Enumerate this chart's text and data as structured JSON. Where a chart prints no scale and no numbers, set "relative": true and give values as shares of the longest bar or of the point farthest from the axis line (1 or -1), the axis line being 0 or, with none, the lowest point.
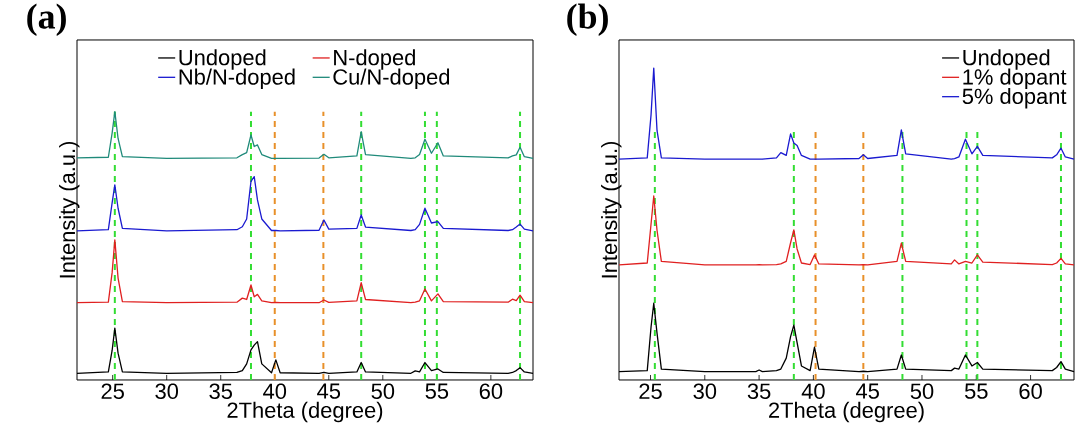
{
  "chart_data": [
    {
      "type": "line",
      "annotations": [
        "(a)"
      ],
      "xlabel": "2Theta (degree)",
      "ylabel": "Intensity (a.u.)",
      "relative": true,
      "xlim": [
        21.7,
        63.9
      ],
      "xticks": [
        25,
        30,
        35,
        40,
        45,
        50,
        55,
        60
      ],
      "legend": "top",
      "x": [
        21.7,
        24.6,
        24.95,
        25.2,
        25.5,
        25.9,
        30,
        36.5,
        37.0,
        37.4,
        37.8,
        38.1,
        38.4,
        38.8,
        39.7,
        40.1,
        40.5,
        44.1,
        44.55,
        45.0,
        47.6,
        48.0,
        48.4,
        52.6,
        53.0,
        53.4,
        53.9,
        54.5,
        55.1,
        55.6,
        61.6,
        62.0,
        62.35,
        62.7,
        63.1,
        63.9
      ],
      "series": [
        {
          "name": "Undoped",
          "color": "#000000",
          "values": [
            0.025,
            0.03,
            0.11,
            0.193,
            0.1,
            0.03,
            0.025,
            0.028,
            0.035,
            0.06,
            0.112,
            0.13,
            0.143,
            0.06,
            0.027,
            0.075,
            0.027,
            0.025,
            0.028,
            0.025,
            0.03,
            0.065,
            0.03,
            0.025,
            0.034,
            0.03,
            0.065,
            0.035,
            0.041,
            0.028,
            0.025,
            0.028,
            0.035,
            0.046,
            0.03,
            0.025
          ]
        },
        {
          "name": "N-doped",
          "color": "#e02020",
          "values": [
            0.288,
            0.29,
            0.4,
            0.522,
            0.38,
            0.292,
            0.288,
            0.29,
            0.305,
            0.3,
            0.354,
            0.31,
            0.319,
            0.295,
            0.288,
            0.289,
            0.288,
            0.288,
            0.298,
            0.289,
            0.295,
            0.363,
            0.3,
            0.288,
            0.29,
            0.295,
            0.339,
            0.295,
            0.321,
            0.292,
            0.29,
            0.301,
            0.296,
            0.316,
            0.292,
            0.288
          ]
        },
        {
          "name": "Nb/N-doped",
          "color": "#1a1ad0",
          "values": [
            0.556,
            0.56,
            0.66,
            0.727,
            0.64,
            0.565,
            0.556,
            0.56,
            0.571,
            0.6,
            0.74,
            0.758,
            0.671,
            0.6,
            0.557,
            0.557,
            0.556,
            0.558,
            0.596,
            0.562,
            0.565,
            0.615,
            0.57,
            0.557,
            0.56,
            0.58,
            0.64,
            0.585,
            0.59,
            0.565,
            0.557,
            0.56,
            0.57,
            0.581,
            0.562,
            0.556
          ]
        },
        {
          "name": "Cu/N-doped",
          "color": "#1f8a7a",
          "values": [
            0.828,
            0.83,
            0.92,
            1.0,
            0.9,
            0.832,
            0.826,
            0.828,
            0.84,
            0.847,
            0.913,
            0.87,
            0.876,
            0.84,
            0.826,
            0.826,
            0.826,
            0.827,
            0.841,
            0.828,
            0.835,
            0.925,
            0.84,
            0.826,
            0.828,
            0.84,
            0.897,
            0.845,
            0.884,
            0.835,
            0.828,
            0.835,
            0.839,
            0.867,
            0.832,
            0.826
          ]
        }
      ],
      "ref_lines": [
        {
          "axis": "x",
          "value": 25.2,
          "color": "#33dd33",
          "line_style": "dashed"
        },
        {
          "axis": "x",
          "value": 37.8,
          "color": "#33dd33",
          "line_style": "dashed"
        },
        {
          "axis": "x",
          "value": 40.0,
          "color": "#e8902a",
          "line_style": "dashed"
        },
        {
          "axis": "x",
          "value": 44.5,
          "color": "#e8902a",
          "line_style": "dashed"
        },
        {
          "axis": "x",
          "value": 48.0,
          "color": "#33dd33",
          "line_style": "dashed"
        },
        {
          "axis": "x",
          "value": 53.9,
          "color": "#33dd33",
          "line_style": "dashed"
        },
        {
          "axis": "x",
          "value": 55.0,
          "color": "#33dd33",
          "line_style": "dashed"
        },
        {
          "axis": "x",
          "value": 62.7,
          "color": "#33dd33",
          "line_style": "dashed"
        }
      ]
    },
    {
      "type": "line",
      "annotations": [
        "(b)"
      ],
      "xlabel": "2Theta (degree)",
      "ylabel": "Intensity (a.u.)",
      "relative": true,
      "xlim": [
        22.1,
        64.0
      ],
      "xticks": [
        25,
        30,
        35,
        40,
        45,
        50,
        55,
        60
      ],
      "legend": "top right",
      "x": [
        22.1,
        24.7,
        25.05,
        25.3,
        25.6,
        26.0,
        30,
        34.7,
        35.0,
        35.3,
        36.6,
        37.0,
        37.5,
        37.9,
        38.2,
        38.5,
        38.9,
        39.7,
        40.1,
        40.5,
        44.2,
        44.6,
        45.0,
        47.7,
        48.1,
        48.5,
        52.7,
        53.0,
        53.4,
        54.0,
        54.6,
        55.1,
        55.6,
        62.0,
        62.4,
        62.8,
        63.2,
        64.0
      ],
      "series": [
        {
          "name": "Undoped",
          "color": "#000000",
          "values": [
            0.027,
            0.03,
            0.17,
            0.246,
            0.15,
            0.035,
            0.027,
            0.027,
            0.032,
            0.027,
            0.03,
            0.035,
            0.07,
            0.139,
            0.176,
            0.12,
            0.045,
            0.03,
            0.105,
            0.035,
            0.027,
            0.028,
            0.027,
            0.035,
            0.08,
            0.035,
            0.03,
            0.038,
            0.035,
            0.08,
            0.045,
            0.056,
            0.035,
            0.03,
            0.04,
            0.059,
            0.035,
            0.027
          ]
        },
        {
          "name": "1% dopant",
          "color": "#e02020",
          "values": [
            0.369,
            0.375,
            0.5,
            0.59,
            0.48,
            0.38,
            0.369,
            0.369,
            0.37,
            0.369,
            0.37,
            0.372,
            0.38,
            0.44,
            0.481,
            0.42,
            0.375,
            0.37,
            0.401,
            0.372,
            0.369,
            0.37,
            0.369,
            0.38,
            0.439,
            0.38,
            0.372,
            0.385,
            0.372,
            0.38,
            0.375,
            0.401,
            0.378,
            0.37,
            0.375,
            0.39,
            0.372,
            0.369
          ]
        },
        {
          "name": "5% dopant",
          "color": "#1a1ad0",
          "values": [
            0.708,
            0.712,
            0.85,
            1.0,
            0.8,
            0.712,
            0.708,
            0.708,
            0.708,
            0.708,
            0.712,
            0.729,
            0.72,
            0.789,
            0.76,
            0.752,
            0.72,
            0.708,
            0.708,
            0.708,
            0.71,
            0.722,
            0.71,
            0.72,
            0.802,
            0.725,
            0.708,
            0.71,
            0.715,
            0.772,
            0.725,
            0.749,
            0.72,
            0.712,
            0.722,
            0.743,
            0.715,
            0.708
          ]
        }
      ],
      "ref_lines": [
        {
          "axis": "x",
          "value": 25.4,
          "color": "#33dd33",
          "line_style": "dashed"
        },
        {
          "axis": "x",
          "value": 38.2,
          "color": "#33dd33",
          "line_style": "dashed"
        },
        {
          "axis": "x",
          "value": 40.2,
          "color": "#e8902a",
          "line_style": "dashed"
        },
        {
          "axis": "x",
          "value": 44.6,
          "color": "#e8902a",
          "line_style": "dashed"
        },
        {
          "axis": "x",
          "value": 48.2,
          "color": "#33dd33",
          "line_style": "dashed"
        },
        {
          "axis": "x",
          "value": 54.1,
          "color": "#33dd33",
          "line_style": "dashed"
        },
        {
          "axis": "x",
          "value": 55.1,
          "color": "#33dd33",
          "line_style": "dashed"
        },
        {
          "axis": "x",
          "value": 62.8,
          "color": "#33dd33",
          "line_style": "dashed"
        }
      ]
    }
  ]
}
